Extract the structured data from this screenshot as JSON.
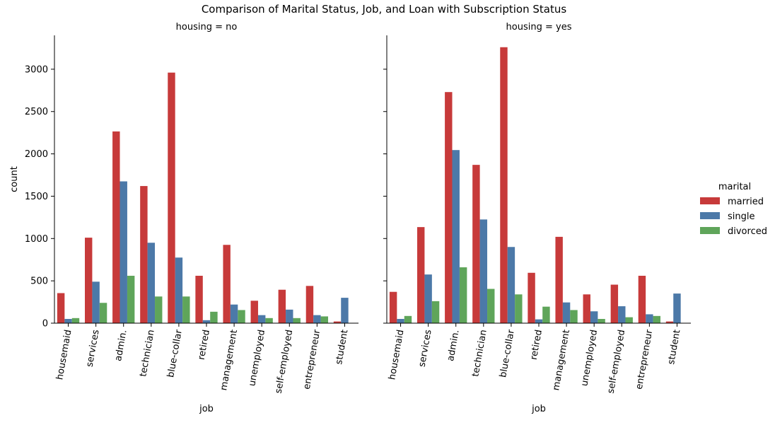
{
  "title": "Comparison of Marital Status, Job, and Loan with Subscription Status",
  "chart_data": {
    "type": "bar",
    "title": "Comparison of Marital Status, Job, and Loan with Subscription Status",
    "xlabel": "job",
    "ylabel": "count",
    "ylim": [
      0,
      3400
    ],
    "yticks": [
      0,
      500,
      1000,
      1500,
      2000,
      2500,
      3000
    ],
    "categories": [
      "housemaid",
      "services",
      "admin.",
      "technician",
      "blue-collar",
      "retired",
      "management",
      "unemployed",
      "self-employed",
      "entrepreneur",
      "student"
    ],
    "legend": {
      "title": "marital",
      "placement": "right",
      "entries": [
        "married",
        "single",
        "divorced"
      ]
    },
    "colors": {
      "married": "#c73a3a",
      "single": "#4c79a8",
      "divorced": "#5fa55a"
    },
    "panels": [
      {
        "title": "housing = no",
        "series": [
          {
            "name": "married",
            "values": [
              355,
              1010,
              2265,
              1620,
              2960,
              560,
              925,
              265,
              395,
              440,
              20
            ]
          },
          {
            "name": "single",
            "values": [
              50,
              490,
              1675,
              950,
              775,
              35,
              220,
              95,
              160,
              95,
              300
            ]
          },
          {
            "name": "divorced",
            "values": [
              60,
              240,
              560,
              315,
              315,
              135,
              155,
              60,
              60,
              80,
              0
            ]
          }
        ]
      },
      {
        "title": "housing = yes",
        "series": [
          {
            "name": "married",
            "values": [
              370,
              1135,
              2730,
              1870,
              3260,
              595,
              1020,
              340,
              455,
              560,
              20
            ]
          },
          {
            "name": "single",
            "values": [
              50,
              575,
              2045,
              1225,
              900,
              45,
              245,
              140,
              200,
              105,
              350
            ]
          },
          {
            "name": "divorced",
            "values": [
              85,
              260,
              660,
              405,
              340,
              195,
              155,
              50,
              70,
              85,
              0
            ]
          }
        ]
      }
    ]
  }
}
